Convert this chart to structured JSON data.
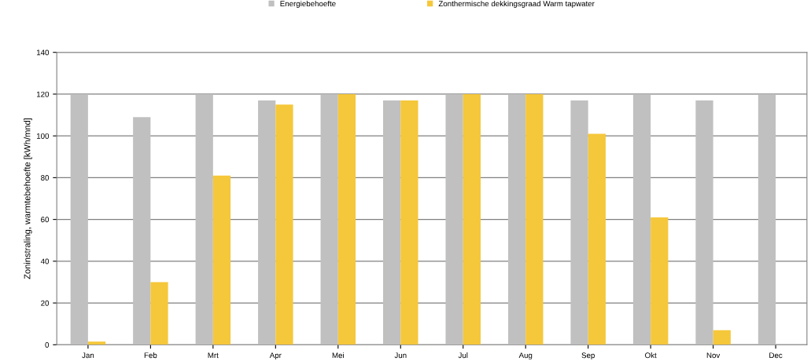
{
  "chart_data": {
    "type": "bar",
    "ylabel": "Zoninstraling, warmtebehoefte [kWh/mnd]",
    "categories": [
      "Jan",
      "Feb",
      "Mrt",
      "Apr",
      "Mei",
      "Jun",
      "Jul",
      "Aug",
      "Sep",
      "Okt",
      "Nov",
      "Dec"
    ],
    "series": [
      {
        "name": "Energiebehoefte",
        "color": "#c0c0c0",
        "values": [
          120,
          109,
          120,
          117,
          120,
          117,
          120,
          120,
          117,
          120,
          117,
          120
        ]
      },
      {
        "name": "Zonthermische dekkingsgraad Warm tapwater",
        "color": "#f5c73a",
        "values": [
          1.5,
          30,
          81,
          115,
          120,
          117,
          120,
          120,
          101,
          61,
          7,
          0
        ]
      }
    ],
    "ylim": [
      0,
      140
    ],
    "yticks": [
      0,
      20,
      40,
      60,
      80,
      100,
      120,
      140
    ],
    "grid": "y",
    "legend": "top"
  }
}
